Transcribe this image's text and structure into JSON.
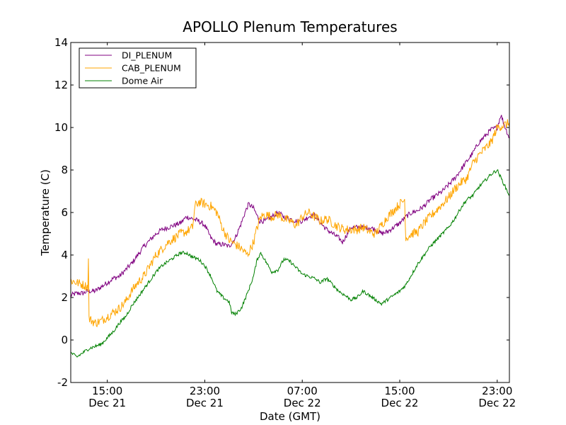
{
  "chart_data": {
    "type": "line",
    "title": "APOLLO Plenum Temperatures",
    "xlabel": "Date (GMT)",
    "ylabel": "Temperature (C)",
    "x_unit": "hours since Dec 21 12:00 GMT",
    "xlim": [
      0,
      36
    ],
    "ylim": [
      -2,
      14
    ],
    "yticks": [
      -2,
      0,
      2,
      4,
      6,
      8,
      10,
      12,
      14
    ],
    "xticks": [
      {
        "x": 3,
        "time": "15:00",
        "date": "Dec 21"
      },
      {
        "x": 11,
        "time": "23:00",
        "date": "Dec 21"
      },
      {
        "x": 19,
        "time": "07:00",
        "date": "Dec 22"
      },
      {
        "x": 27,
        "time": "15:00",
        "date": "Dec 22"
      },
      {
        "x": 35,
        "time": "23:00",
        "date": "Dec 22"
      }
    ],
    "legend_position": "top-left",
    "series": [
      {
        "name": "DI_PLENUM",
        "color": "#800080",
        "noise": 0.12,
        "points": [
          [
            0,
            2.1
          ],
          [
            0.5,
            2.2
          ],
          [
            1,
            2.2
          ],
          [
            1.4,
            2.3
          ],
          [
            1.5,
            2.3
          ],
          [
            2,
            2.3
          ],
          [
            2.5,
            2.5
          ],
          [
            3,
            2.7
          ],
          [
            3.5,
            2.9
          ],
          [
            4,
            3.0
          ],
          [
            4.5,
            3.3
          ],
          [
            5,
            3.6
          ],
          [
            5.5,
            4.0
          ],
          [
            6,
            4.4
          ],
          [
            6.5,
            4.7
          ],
          [
            7,
            5.0
          ],
          [
            7.5,
            5.2
          ],
          [
            8,
            5.3
          ],
          [
            8.5,
            5.4
          ],
          [
            9,
            5.5
          ],
          [
            9.5,
            5.8
          ],
          [
            10,
            5.7
          ],
          [
            10.5,
            5.6
          ],
          [
            11,
            5.4
          ],
          [
            11.5,
            4.8
          ],
          [
            12,
            4.5
          ],
          [
            12.5,
            4.5
          ],
          [
            13,
            4.4
          ],
          [
            13.5,
            4.8
          ],
          [
            14,
            5.5
          ],
          [
            14.3,
            6.0
          ],
          [
            14.6,
            6.4
          ],
          [
            15,
            6.2
          ],
          [
            15.5,
            5.6
          ],
          [
            16,
            5.6
          ],
          [
            16.5,
            5.8
          ],
          [
            17,
            6.0
          ],
          [
            17.5,
            5.8
          ],
          [
            18,
            5.7
          ],
          [
            18.5,
            5.6
          ],
          [
            19,
            5.6
          ],
          [
            19.5,
            5.8
          ],
          [
            20,
            5.9
          ],
          [
            20.5,
            5.5
          ],
          [
            21,
            5.2
          ],
          [
            21.5,
            5.0
          ],
          [
            22,
            4.8
          ],
          [
            22.3,
            4.6
          ],
          [
            22.6,
            4.9
          ],
          [
            23,
            5.3
          ],
          [
            23.5,
            5.3
          ],
          [
            24,
            5.3
          ],
          [
            24.5,
            5.3
          ],
          [
            25,
            5.2
          ],
          [
            25.5,
            5.0
          ],
          [
            26,
            5.1
          ],
          [
            26.5,
            5.3
          ],
          [
            27,
            5.5
          ],
          [
            27.5,
            5.8
          ],
          [
            28,
            6.0
          ],
          [
            28.5,
            6.1
          ],
          [
            29,
            6.3
          ],
          [
            29.5,
            6.6
          ],
          [
            30,
            6.8
          ],
          [
            30.5,
            7.0
          ],
          [
            31,
            7.3
          ],
          [
            31.5,
            7.6
          ],
          [
            32,
            8.0
          ],
          [
            32.5,
            8.4
          ],
          [
            33,
            8.8
          ],
          [
            33.5,
            9.3
          ],
          [
            34,
            9.6
          ],
          [
            34.5,
            9.9
          ],
          [
            35,
            10.0
          ],
          [
            35.3,
            10.6
          ],
          [
            35.6,
            10.1
          ],
          [
            36,
            9.5
          ]
        ]
      },
      {
        "name": "CAB_PLENUM",
        "color": "#ffa500",
        "noise": 0.22,
        "points": [
          [
            0,
            2.8
          ],
          [
            0.5,
            2.7
          ],
          [
            1,
            2.6
          ],
          [
            1.4,
            2.5
          ],
          [
            1.45,
            3.8
          ],
          [
            1.5,
            1.0
          ],
          [
            2,
            0.8
          ],
          [
            2.5,
            0.9
          ],
          [
            3,
            1.1
          ],
          [
            3.5,
            1.3
          ],
          [
            4,
            1.5
          ],
          [
            4.5,
            1.8
          ],
          [
            5,
            2.3
          ],
          [
            5.5,
            2.7
          ],
          [
            6,
            3.0
          ],
          [
            6.5,
            3.5
          ],
          [
            7,
            4.0
          ],
          [
            7.5,
            4.3
          ],
          [
            8,
            4.6
          ],
          [
            8.5,
            4.8
          ],
          [
            9,
            5.0
          ],
          [
            9.5,
            5.1
          ],
          [
            10,
            5.3
          ],
          [
            10.2,
            6.3
          ],
          [
            10.5,
            6.5
          ],
          [
            11,
            6.4
          ],
          [
            11.5,
            6.3
          ],
          [
            12,
            6.0
          ],
          [
            12.5,
            5.2
          ],
          [
            13,
            4.7
          ],
          [
            13.5,
            4.5
          ],
          [
            14,
            4.3
          ],
          [
            14.5,
            4.0
          ],
          [
            15,
            4.6
          ],
          [
            15.3,
            5.3
          ],
          [
            15.6,
            5.8
          ],
          [
            16,
            5.9
          ],
          [
            16.5,
            5.8
          ],
          [
            17,
            5.9
          ],
          [
            17.5,
            5.7
          ],
          [
            18,
            5.6
          ],
          [
            18.5,
            5.4
          ],
          [
            19,
            5.8
          ],
          [
            19.5,
            6.0
          ],
          [
            20,
            5.8
          ],
          [
            20.5,
            5.6
          ],
          [
            21,
            5.7
          ],
          [
            21.5,
            5.5
          ],
          [
            22,
            5.3
          ],
          [
            22.5,
            5.2
          ],
          [
            23,
            5.2
          ],
          [
            23.5,
            5.2
          ],
          [
            24,
            5.3
          ],
          [
            24.5,
            5.1
          ],
          [
            25,
            5.0
          ],
          [
            25.5,
            5.4
          ],
          [
            26,
            5.8
          ],
          [
            26.5,
            6.1
          ],
          [
            27,
            6.4
          ],
          [
            27.4,
            6.6
          ],
          [
            27.5,
            4.8
          ],
          [
            28,
            5.0
          ],
          [
            28.5,
            5.1
          ],
          [
            29,
            5.5
          ],
          [
            29.5,
            5.8
          ],
          [
            30,
            6.1
          ],
          [
            30.5,
            6.4
          ],
          [
            31,
            6.7
          ],
          [
            31.5,
            7.1
          ],
          [
            32,
            7.4
          ],
          [
            32.5,
            7.6
          ],
          [
            33,
            8.3
          ],
          [
            33.5,
            8.7
          ],
          [
            34,
            9.0
          ],
          [
            34.5,
            9.3
          ],
          [
            35,
            10.0
          ],
          [
            35.5,
            10.1
          ],
          [
            36,
            10.2
          ]
        ]
      },
      {
        "name": "Dome Air",
        "color": "#008000",
        "noise": 0.08,
        "points": [
          [
            0,
            -0.6
          ],
          [
            0.5,
            -0.8
          ],
          [
            1,
            -0.6
          ],
          [
            1.5,
            -0.4
          ],
          [
            2,
            -0.3
          ],
          [
            2.5,
            -0.2
          ],
          [
            3,
            0.1
          ],
          [
            3.5,
            0.4
          ],
          [
            4,
            0.8
          ],
          [
            4.5,
            1.1
          ],
          [
            5,
            1.6
          ],
          [
            5.5,
            2.0
          ],
          [
            6,
            2.4
          ],
          [
            6.5,
            2.8
          ],
          [
            7,
            3.2
          ],
          [
            7.5,
            3.5
          ],
          [
            8,
            3.7
          ],
          [
            8.5,
            3.9
          ],
          [
            9,
            4.1
          ],
          [
            9.5,
            4.1
          ],
          [
            10,
            3.9
          ],
          [
            10.5,
            3.8
          ],
          [
            11,
            3.5
          ],
          [
            11.5,
            3.0
          ],
          [
            12,
            2.3
          ],
          [
            12.5,
            2.0
          ],
          [
            13,
            1.8
          ],
          [
            13.2,
            1.3
          ],
          [
            13.5,
            1.2
          ],
          [
            14,
            1.5
          ],
          [
            14.5,
            2.2
          ],
          [
            15,
            3.0
          ],
          [
            15.3,
            3.8
          ],
          [
            15.6,
            4.1
          ],
          [
            16,
            3.7
          ],
          [
            16.5,
            3.2
          ],
          [
            17,
            3.3
          ],
          [
            17.5,
            3.8
          ],
          [
            18,
            3.7
          ],
          [
            18.5,
            3.4
          ],
          [
            19,
            3.1
          ],
          [
            19.5,
            3.0
          ],
          [
            20,
            2.9
          ],
          [
            20.5,
            2.7
          ],
          [
            21,
            2.9
          ],
          [
            21.5,
            2.6
          ],
          [
            22,
            2.3
          ],
          [
            22.5,
            2.1
          ],
          [
            23,
            1.9
          ],
          [
            23.5,
            2.0
          ],
          [
            24,
            2.3
          ],
          [
            24.5,
            2.1
          ],
          [
            25,
            1.9
          ],
          [
            25.5,
            1.7
          ],
          [
            26,
            1.9
          ],
          [
            26.5,
            2.1
          ],
          [
            27,
            2.3
          ],
          [
            27.5,
            2.6
          ],
          [
            28,
            3.1
          ],
          [
            28.5,
            3.6
          ],
          [
            29,
            4.0
          ],
          [
            29.5,
            4.4
          ],
          [
            30,
            4.7
          ],
          [
            30.5,
            5.0
          ],
          [
            31,
            5.3
          ],
          [
            31.5,
            5.7
          ],
          [
            32,
            6.2
          ],
          [
            32.5,
            6.6
          ],
          [
            33,
            6.8
          ],
          [
            33.5,
            7.2
          ],
          [
            34,
            7.5
          ],
          [
            34.5,
            7.8
          ],
          [
            35,
            8.0
          ],
          [
            35.5,
            7.4
          ],
          [
            36,
            6.8
          ]
        ]
      }
    ]
  }
}
